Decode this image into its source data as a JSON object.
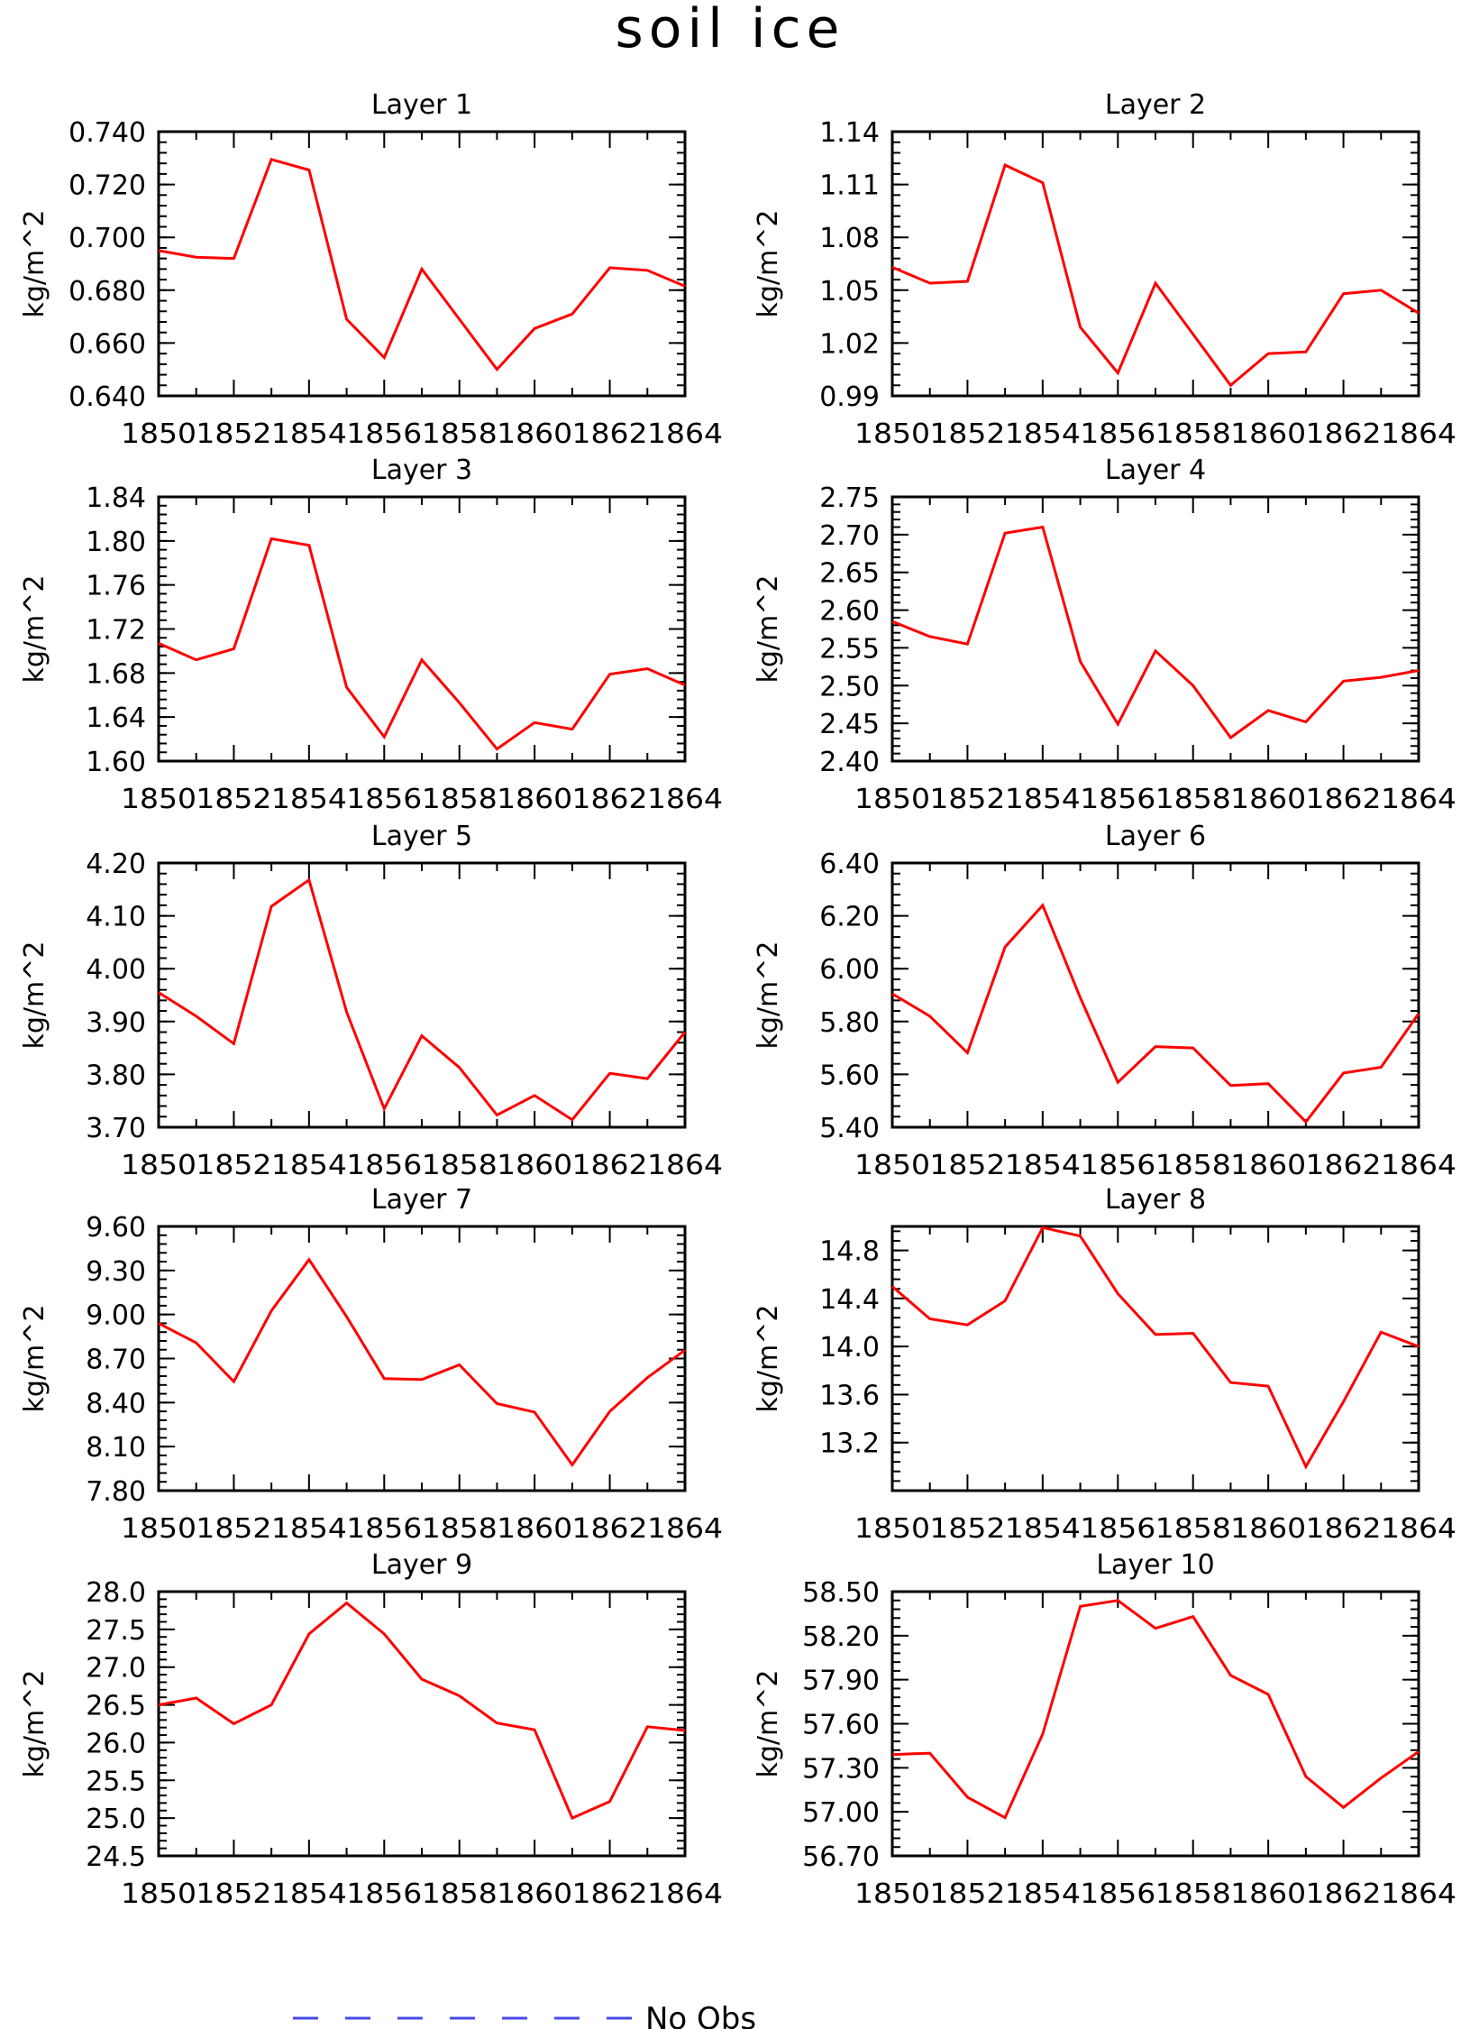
{
  "title": "soil ice",
  "colors": {
    "series": "#ff0000",
    "obs": "#4a4ae8",
    "axes": "#000000"
  },
  "legend": {
    "label": "No Obs"
  },
  "chart_data": [
    {
      "type": "line",
      "title": "Layer 1",
      "ylabel": "kg/m^2",
      "x": [
        1850,
        1851,
        1852,
        1853,
        1854,
        1855,
        1856,
        1857,
        1858,
        1859,
        1860,
        1861,
        1862,
        1863,
        1864
      ],
      "xticks": [
        "1850",
        "1852",
        "1854",
        "1856",
        "1858",
        "1860",
        "1862",
        "1864"
      ],
      "yticks": [
        "0.640",
        "0.660",
        "0.680",
        "0.700",
        "0.720",
        "0.740"
      ],
      "ylim": [
        0.64,
        0.74
      ],
      "values": [
        0.695,
        0.6925,
        0.692,
        0.7295,
        0.7255,
        0.669,
        0.6545,
        0.688,
        0.669,
        0.65,
        0.6655,
        0.671,
        0.6885,
        0.6875,
        0.6815
      ]
    },
    {
      "type": "line",
      "title": "Layer 2",
      "ylabel": "kg/m^2",
      "x": [
        1850,
        1851,
        1852,
        1853,
        1854,
        1855,
        1856,
        1857,
        1858,
        1859,
        1860,
        1861,
        1862,
        1863,
        1864
      ],
      "xticks": [
        "1850",
        "1852",
        "1854",
        "1856",
        "1858",
        "1860",
        "1862",
        "1864"
      ],
      "yticks": [
        "0.99",
        "1.02",
        "1.05",
        "1.08",
        "1.11",
        "1.14"
      ],
      "ylim": [
        0.99,
        1.14
      ],
      "values": [
        1.063,
        1.054,
        1.055,
        1.121,
        1.111,
        1.029,
        1.003,
        1.054,
        1.025,
        0.996,
        1.014,
        1.015,
        1.048,
        1.05,
        1.037
      ]
    },
    {
      "type": "line",
      "title": "Layer 3",
      "ylabel": "kg/m^2",
      "x": [
        1850,
        1851,
        1852,
        1853,
        1854,
        1855,
        1856,
        1857,
        1858,
        1859,
        1860,
        1861,
        1862,
        1863,
        1864
      ],
      "xticks": [
        "1850",
        "1852",
        "1854",
        "1856",
        "1858",
        "1860",
        "1862",
        "1864"
      ],
      "yticks": [
        "1.60",
        "1.64",
        "1.68",
        "1.72",
        "1.76",
        "1.80",
        "1.84"
      ],
      "ylim": [
        1.6,
        1.84
      ],
      "values": [
        1.707,
        1.692,
        1.702,
        1.802,
        1.796,
        1.667,
        1.622,
        1.692,
        1.653,
        1.611,
        1.635,
        1.629,
        1.679,
        1.684,
        1.669
      ]
    },
    {
      "type": "line",
      "title": "Layer 4",
      "ylabel": "kg/m^2",
      "x": [
        1850,
        1851,
        1852,
        1853,
        1854,
        1855,
        1856,
        1857,
        1858,
        1859,
        1860,
        1861,
        1862,
        1863,
        1864
      ],
      "xticks": [
        "1850",
        "1852",
        "1854",
        "1856",
        "1858",
        "1860",
        "1862",
        "1864"
      ],
      "yticks": [
        "2.40",
        "2.45",
        "2.50",
        "2.55",
        "2.60",
        "2.65",
        "2.70",
        "2.75"
      ],
      "ylim": [
        2.4,
        2.75
      ],
      "values": [
        2.585,
        2.565,
        2.555,
        2.702,
        2.71,
        2.532,
        2.449,
        2.546,
        2.5,
        2.431,
        2.467,
        2.452,
        2.506,
        2.511,
        2.52
      ]
    },
    {
      "type": "line",
      "title": "Layer 5",
      "ylabel": "kg/m^2",
      "x": [
        1850,
        1851,
        1852,
        1853,
        1854,
        1855,
        1856,
        1857,
        1858,
        1859,
        1860,
        1861,
        1862,
        1863,
        1864
      ],
      "xticks": [
        "1850",
        "1852",
        "1854",
        "1856",
        "1858",
        "1860",
        "1862",
        "1864"
      ],
      "yticks": [
        "3.70",
        "3.80",
        "3.90",
        "4.00",
        "4.10",
        "4.20"
      ],
      "ylim": [
        3.7,
        4.2
      ],
      "values": [
        3.955,
        3.91,
        3.858,
        4.118,
        4.168,
        3.918,
        3.735,
        3.873,
        3.813,
        3.723,
        3.76,
        3.714,
        3.802,
        3.792,
        3.88
      ]
    },
    {
      "type": "line",
      "title": "Layer 6",
      "ylabel": "kg/m^2",
      "x": [
        1850,
        1851,
        1852,
        1853,
        1854,
        1855,
        1856,
        1857,
        1858,
        1859,
        1860,
        1861,
        1862,
        1863,
        1864
      ],
      "xticks": [
        "1850",
        "1852",
        "1854",
        "1856",
        "1858",
        "1860",
        "1862",
        "1864"
      ],
      "yticks": [
        "5.40",
        "5.60",
        "5.80",
        "6.00",
        "6.20",
        "6.40"
      ],
      "ylim": [
        5.4,
        6.4
      ],
      "values": [
        5.905,
        5.82,
        5.682,
        6.082,
        6.24,
        5.89,
        5.57,
        5.705,
        5.7,
        5.558,
        5.565,
        5.42,
        5.605,
        5.627,
        5.83
      ]
    },
    {
      "type": "line",
      "title": "Layer 7",
      "ylabel": "kg/m^2",
      "x": [
        1850,
        1851,
        1852,
        1853,
        1854,
        1855,
        1856,
        1857,
        1858,
        1859,
        1860,
        1861,
        1862,
        1863,
        1864
      ],
      "xticks": [
        "1850",
        "1852",
        "1854",
        "1856",
        "1858",
        "1860",
        "1862",
        "1864"
      ],
      "yticks": [
        "7.80",
        "8.10",
        "8.40",
        "8.70",
        "9.00",
        "9.30",
        "9.60"
      ],
      "ylim": [
        7.8,
        9.6
      ],
      "values": [
        8.94,
        8.807,
        8.543,
        9.025,
        9.374,
        8.985,
        8.563,
        8.557,
        8.657,
        8.393,
        8.335,
        7.976,
        8.34,
        8.57,
        8.757
      ]
    },
    {
      "type": "line",
      "title": "Layer 8",
      "ylabel": "kg/m^2",
      "x": [
        1850,
        1851,
        1852,
        1853,
        1854,
        1855,
        1856,
        1857,
        1858,
        1859,
        1860,
        1861,
        1862,
        1863,
        1864
      ],
      "xticks": [
        "1850",
        "1852",
        "1854",
        "1856",
        "1858",
        "1860",
        "1862",
        "1864"
      ],
      "yticks": [
        "13.2",
        "13.6",
        "14.0",
        "14.4",
        "14.8"
      ],
      "ylim": [
        12.8,
        15.0
      ],
      "values": [
        14.5,
        14.23,
        14.18,
        14.38,
        14.99,
        14.92,
        14.44,
        14.1,
        14.11,
        13.7,
        13.67,
        13.0,
        13.54,
        14.12,
        14.0
      ]
    },
    {
      "type": "line",
      "title": "Layer 9",
      "ylabel": "kg/m^2",
      "x": [
        1850,
        1851,
        1852,
        1853,
        1854,
        1855,
        1856,
        1857,
        1858,
        1859,
        1860,
        1861,
        1862,
        1863,
        1864
      ],
      "xticks": [
        "1850",
        "1852",
        "1854",
        "1856",
        "1858",
        "1860",
        "1862",
        "1864"
      ],
      "yticks": [
        "24.5",
        "25.0",
        "25.5",
        "26.0",
        "26.5",
        "27.0",
        "27.5",
        "28.0"
      ],
      "ylim": [
        24.5,
        28.0
      ],
      "values": [
        26.5,
        26.59,
        26.25,
        26.5,
        27.44,
        27.85,
        27.44,
        26.84,
        26.62,
        26.26,
        26.17,
        25.0,
        25.22,
        26.21,
        26.16
      ]
    },
    {
      "type": "line",
      "title": "Layer 10",
      "ylabel": "kg/m^2",
      "x": [
        1850,
        1851,
        1852,
        1853,
        1854,
        1855,
        1856,
        1857,
        1858,
        1859,
        1860,
        1861,
        1862,
        1863,
        1864
      ],
      "xticks": [
        "1850",
        "1852",
        "1854",
        "1856",
        "1858",
        "1860",
        "1862",
        "1864"
      ],
      "yticks": [
        "56.70",
        "57.00",
        "57.30",
        "57.60",
        "57.90",
        "58.20",
        "58.50"
      ],
      "ylim": [
        56.7,
        58.5
      ],
      "values": [
        57.39,
        57.4,
        57.1,
        56.96,
        57.53,
        58.4,
        58.44,
        58.25,
        58.33,
        57.93,
        57.8,
        57.24,
        57.03,
        57.23,
        57.41
      ]
    }
  ]
}
